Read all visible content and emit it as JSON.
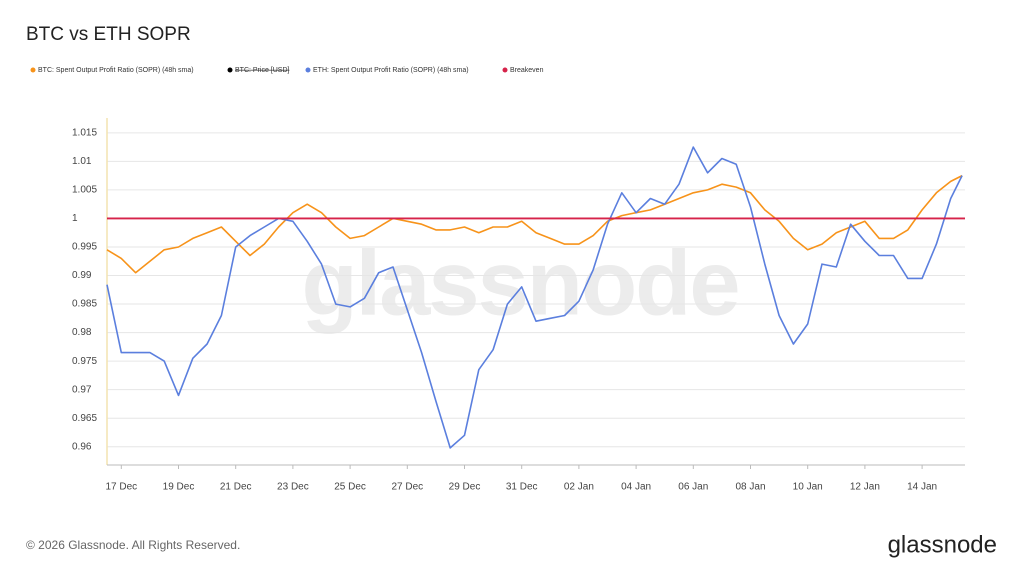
{
  "chart_data": {
    "type": "line",
    "title": "BTC vs ETH SOPR",
    "watermark": "glassnode",
    "footer": "© 2026 Glassnode. All Rights Reserved.",
    "logo": "glassnode",
    "x": [
      -0.5,
      0,
      0.5,
      1,
      1.5,
      2,
      2.5,
      3,
      3.5,
      4,
      4.5,
      5,
      5.5,
      6,
      6.5,
      7,
      7.5,
      8,
      8.5,
      9,
      9.5,
      10,
      10.5,
      11,
      11.5,
      12,
      12.5,
      13,
      13.5,
      14,
      14.5,
      15,
      15.5,
      16,
      16.5,
      17,
      17.5,
      18,
      18.5,
      19,
      19.5,
      20,
      20.5,
      21,
      21.5,
      22,
      22.5,
      23,
      23.5,
      24,
      24.5,
      25,
      25.5,
      26,
      26.5,
      27,
      27.5,
      28,
      28.5,
      29,
      29.4
    ],
    "xlim": [
      -0.5,
      29.5
    ],
    "xticks": [
      {
        "value": 0,
        "label": "17 Dec"
      },
      {
        "value": 2,
        "label": "19 Dec"
      },
      {
        "value": 4,
        "label": "21 Dec"
      },
      {
        "value": 6,
        "label": "23 Dec"
      },
      {
        "value": 8,
        "label": "25 Dec"
      },
      {
        "value": 10,
        "label": "27 Dec"
      },
      {
        "value": 12,
        "label": "29 Dec"
      },
      {
        "value": 14,
        "label": "31 Dec"
      },
      {
        "value": 16,
        "label": "02 Jan"
      },
      {
        "value": 18,
        "label": "04 Jan"
      },
      {
        "value": 20,
        "label": "06 Jan"
      },
      {
        "value": 22,
        "label": "08 Jan"
      },
      {
        "value": 24,
        "label": "10 Jan"
      },
      {
        "value": 26,
        "label": "12 Jan"
      },
      {
        "value": 28,
        "label": "14 Jan"
      }
    ],
    "ylim": [
      0.9568,
      1.0176
    ],
    "yticks": [
      0.96,
      0.965,
      0.97,
      0.975,
      0.98,
      0.985,
      0.99,
      0.995,
      1,
      1.005,
      1.01,
      1.015
    ],
    "grid": true,
    "series": [
      {
        "name": "BTC: Spent Output Profit Ratio (SOPR) (48h sma)",
        "color": "#f7931a",
        "values": [
          0.9945,
          0.993,
          0.9905,
          0.9925,
          0.9945,
          0.995,
          0.9965,
          0.9975,
          0.9985,
          0.996,
          0.9935,
          0.9955,
          0.9985,
          1.001,
          1.0025,
          1.001,
          0.9985,
          0.9965,
          0.997,
          0.9985,
          1.0,
          0.9995,
          0.999,
          0.998,
          0.998,
          0.9985,
          0.9975,
          0.9985,
          0.9985,
          0.9995,
          0.9975,
          0.9965,
          0.9955,
          0.9955,
          0.997,
          0.9995,
          1.0005,
          1.001,
          1.0015,
          1.0025,
          1.0035,
          1.0045,
          1.005,
          1.006,
          1.0055,
          1.0045,
          1.0015,
          0.9995,
          0.9965,
          0.9945,
          0.9955,
          0.9975,
          0.9985,
          0.9995,
          0.9965,
          0.9965,
          0.998,
          1.0015,
          1.0045,
          1.0065,
          1.0075
        ]
      },
      {
        "name": "ETH: Spent Output Profit Ratio (SOPR) (48h sma)",
        "color": "#5b7fde",
        "values": [
          0.9884,
          0.9765,
          0.9765,
          0.9765,
          0.975,
          0.969,
          0.9755,
          0.978,
          0.983,
          0.995,
          0.997,
          0.9985,
          1.0,
          0.9995,
          0.996,
          0.992,
          0.985,
          0.9845,
          0.986,
          0.9905,
          0.9915,
          0.984,
          0.9765,
          0.968,
          0.9598,
          0.962,
          0.9735,
          0.977,
          0.985,
          0.988,
          0.982,
          0.9825,
          0.983,
          0.9855,
          0.991,
          0.999,
          1.0045,
          1.001,
          1.0035,
          1.0025,
          1.006,
          1.0125,
          1.008,
          1.0105,
          1.0095,
          1.002,
          0.992,
          0.983,
          0.978,
          0.9815,
          0.992,
          0.9915,
          0.999,
          0.996,
          0.9935,
          0.9935,
          0.9895,
          0.9895,
          0.9955,
          1.0035,
          1.0075
        ]
      }
    ],
    "hidden_series": [
      {
        "name": "BTC: Price [USD]",
        "color": "#000000"
      }
    ],
    "reference_line": {
      "name": "Breakeven",
      "value": 1,
      "color": "#d6234a"
    }
  }
}
